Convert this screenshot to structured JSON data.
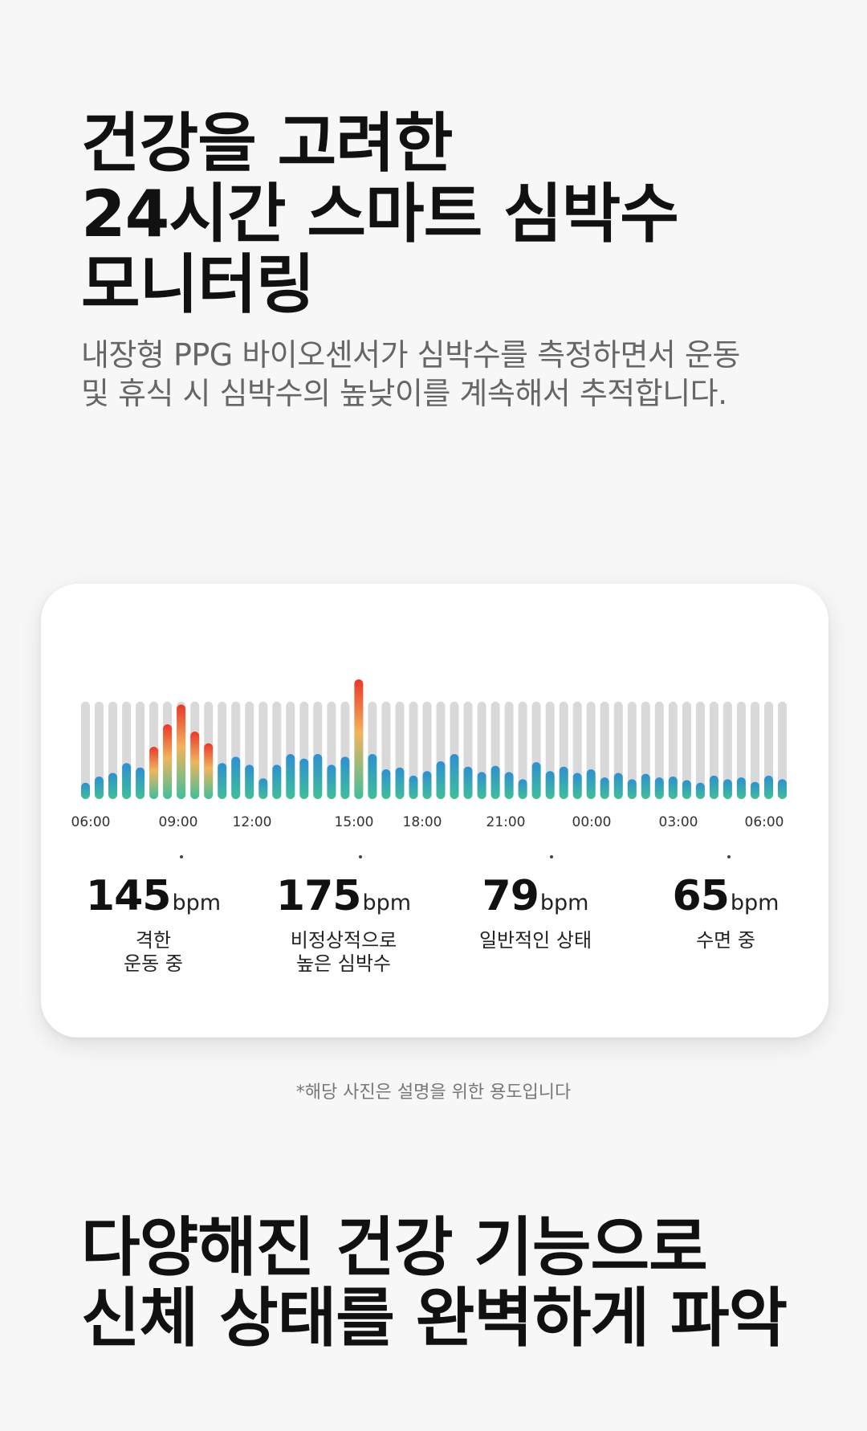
{
  "headline": {
    "lines": [
      "건강을 고려한",
      "24시간 스마트 심박수",
      "모니터링"
    ]
  },
  "description": {
    "lines": [
      "내장형 PPG 바이오센서가 심박수를 측정하면서 운동",
      "및 휴식 시 심박수의 높낮이를 계속해서 추적합니다."
    ]
  },
  "chart_data": {
    "type": "bar",
    "x_tick_labels": [
      "06:00",
      "09:00",
      "12:00",
      "15:00",
      "18:00",
      "21:00",
      "00:00",
      "03:00",
      "06:00"
    ],
    "values": [
      18,
      25,
      29,
      40,
      35,
      58,
      83,
      105,
      75,
      62,
      40,
      47,
      38,
      23,
      38,
      50,
      45,
      50,
      38,
      47,
      133,
      50,
      33,
      35,
      26,
      31,
      42,
      50,
      36,
      30,
      37,
      30,
      22,
      41,
      31,
      36,
      29,
      33,
      24,
      29,
      22,
      28,
      24,
      25,
      21,
      18,
      26,
      22,
      24,
      19,
      26,
      22
    ],
    "ylim": [
      0,
      140
    ],
    "background_bar_value": 88,
    "colors": {
      "low_bottom": "#3fbf9a",
      "low_top": "#2f8fd0",
      "high_mid": "#f2b45c",
      "high_top": "#e8382c",
      "background_bar": "#d9d9d9"
    }
  },
  "stats": [
    {
      "value": "145",
      "unit": "bpm",
      "desc": [
        "격한",
        "운동 중"
      ]
    },
    {
      "value": "175",
      "unit": "bpm",
      "desc": [
        "비정상적으로",
        "높은 심박수"
      ]
    },
    {
      "value": "79",
      "unit": "bpm",
      "desc": [
        "일반적인 상태"
      ]
    },
    {
      "value": "65",
      "unit": "bpm",
      "desc": [
        "수면 중"
      ]
    }
  ],
  "disclaimer": "*해당 사진은 설명을 위한 용도입니다",
  "headline2": {
    "lines": [
      "다양해진 건강 기능으로",
      "신체 상태를 완벽하게 파악"
    ]
  }
}
